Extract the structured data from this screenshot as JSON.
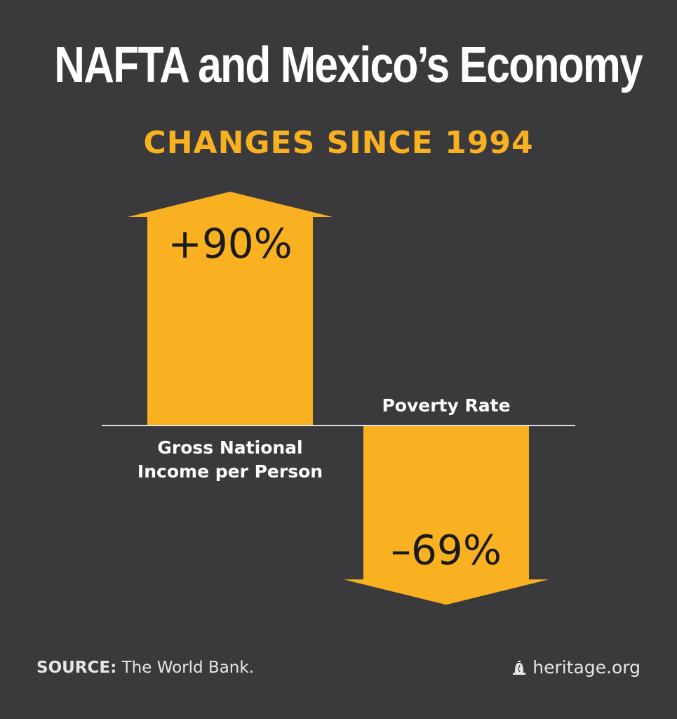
{
  "header": {
    "title": "NAFTA and Mexico’s Economy",
    "subtitle": "CHANGES SINCE 1994"
  },
  "footer": {
    "source_label": "SOURCE:",
    "source_text": "The World Bank.",
    "brand": "heritage.org",
    "brand_icon": "liberty-bell-icon"
  },
  "colors": {
    "background": "#3a3a3c",
    "accent": "#f9b121",
    "text": "#ffffff",
    "baseline": "#e0e0e0"
  },
  "chart_data": {
    "type": "bar",
    "title": "NAFTA and Mexico’s Economy",
    "subtitle": "CHANGES SINCE 1994",
    "categories": [
      "Gross National Income per Person",
      "Poverty Rate"
    ],
    "category_label_lines": [
      [
        "Gross National",
        "Income per Person"
      ],
      [
        "Poverty Rate"
      ]
    ],
    "values": [
      90,
      -69
    ],
    "value_labels": [
      "+90%",
      "–69%"
    ],
    "unit": "%",
    "ylim": [
      -100,
      100
    ],
    "grid": false,
    "legend": "none",
    "bar_style": "arrow"
  }
}
